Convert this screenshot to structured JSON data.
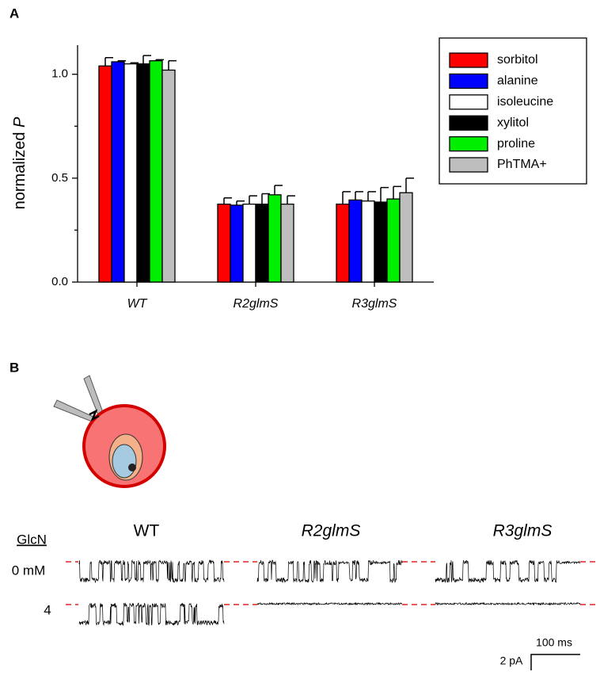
{
  "chart_data": {
    "type": "bar",
    "panel_label": "A",
    "ylabel": "normalized",
    "ylabel_symbol": "P",
    "categories": [
      "WT",
      "R2glmS",
      "R3glmS"
    ],
    "series": [
      {
        "name": "sorbitol",
        "color": "#ff0000",
        "values": [
          1.04,
          0.375,
          0.375
        ],
        "errors": [
          0.04,
          0.03,
          0.06
        ]
      },
      {
        "name": "alanine",
        "color": "#0000ff",
        "values": [
          1.06,
          0.37,
          0.395
        ],
        "errors": [
          0.005,
          0.02,
          0.04
        ]
      },
      {
        "name": "isoleucine",
        "color": "#ffffff",
        "values": [
          1.05,
          0.375,
          0.39
        ],
        "errors": [
          0.005,
          0.04,
          0.045
        ]
      },
      {
        "name": "xylitol",
        "color": "#000000",
        "values": [
          1.05,
          0.375,
          0.385
        ],
        "errors": [
          0.04,
          0.05,
          0.07
        ]
      },
      {
        "name": "proline",
        "color": "#00ee00",
        "values": [
          1.065,
          0.42,
          0.4
        ],
        "errors": [
          0.005,
          0.045,
          0.06
        ]
      },
      {
        "name": "PhTMA+",
        "color": "#bebebe",
        "values": [
          1.02,
          0.375,
          0.43
        ],
        "errors": [
          0.045,
          0.04,
          0.07
        ]
      }
    ],
    "ylim": [
      0,
      1.14
    ],
    "yticks": [
      {
        "value": 0,
        "label": "0.0"
      },
      {
        "value": 0.5,
        "label": "0.5"
      },
      {
        "value": 1,
        "label": "1.0"
      }
    ],
    "yminorticks": [
      0.25,
      0.75
    ],
    "legend": "upper right"
  },
  "panel_b": {
    "panel_label": "B",
    "row_header": "GlcN",
    "columns": [
      "WT",
      "R2glmS",
      "R3glmS"
    ],
    "rows": [
      "0 mM",
      "4"
    ],
    "scale_time": "100 ms",
    "scale_current": "2 pA"
  }
}
